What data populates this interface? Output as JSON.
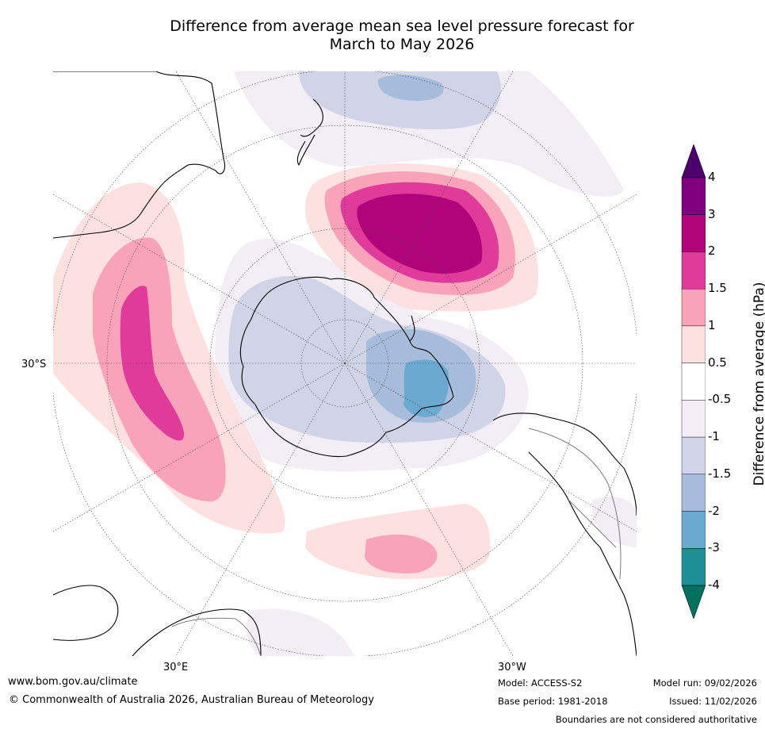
{
  "title": {
    "line1": "Difference from average mean sea level pressure forecast for",
    "line2": "March to May 2026"
  },
  "map": {
    "projection": "south-polar-stereographic",
    "latitude_labels": [
      "30°S"
    ],
    "longitude_labels": [
      "30°E",
      "30°W"
    ]
  },
  "colorbar": {
    "title": "Difference from average (hPa)",
    "ticks": [
      "4",
      "3",
      "2",
      "1.5",
      "1",
      "0.5",
      "-0.5",
      "-1",
      "-1.5",
      "-2",
      "-3",
      "-4"
    ],
    "colors": [
      "#800080",
      "#b0047a",
      "#e03a9a",
      "#f9a3ba",
      "#fde0e0",
      "#ffffff",
      "#f3eef5",
      "#d1d3e6",
      "#a7bcda",
      "#6aaad0",
      "#1e8f94"
    ],
    "over_color": "#4b006e",
    "under_color": "#00705f"
  },
  "footer": {
    "website": "www.bom.gov.au/climate",
    "copyright": "© Commonwealth of Australia 2026, Australian Bureau of Meteorology",
    "model": "Model: ACCESS-S2",
    "base_period": "Base period: 1981-2018",
    "model_run": "Model run: 09/02/2026",
    "issued": "Issued: 11/02/2026",
    "disclaimer": "Boundaries are not considered authoritative"
  }
}
